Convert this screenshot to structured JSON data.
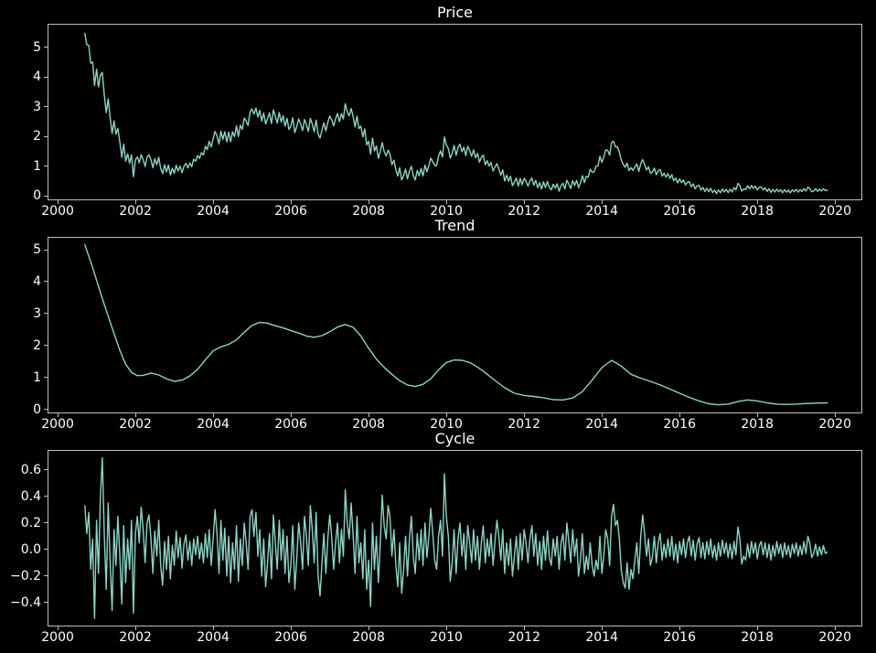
{
  "figure": {
    "background": "#000000",
    "line_color": "#8dd3c7",
    "spine_color": "#bfbfbf",
    "tick_color": "#bfbfbf",
    "text_color": "#ffffff"
  },
  "chart_data": [
    {
      "type": "line",
      "title": "Price",
      "grid": false,
      "legend": "none",
      "xlim": [
        1999.74,
        2020.7
      ],
      "ylim": [
        -0.15,
        5.8
      ],
      "xticks": {
        "values": [
          2000,
          2002,
          2004,
          2006,
          2008,
          2010,
          2012,
          2014,
          2016,
          2018,
          2020
        ],
        "labels": [
          "2000",
          "2002",
          "2004",
          "2006",
          "2008",
          "2010",
          "2012",
          "2014",
          "2016",
          "2018",
          "2020"
        ]
      },
      "yticks": {
        "values": [
          0,
          1,
          2,
          3,
          4,
          5
        ],
        "labels": [
          "0",
          "1",
          "2",
          "3",
          "4",
          "5"
        ]
      },
      "series": {
        "rule": "trend_plus_cycle"
      }
    },
    {
      "type": "line",
      "title": "Trend",
      "grid": false,
      "legend": "none",
      "xlim": [
        1999.74,
        2020.7
      ],
      "ylim": [
        -0.12,
        5.4
      ],
      "xticks": {
        "values": [
          2000,
          2002,
          2004,
          2006,
          2008,
          2010,
          2012,
          2014,
          2016,
          2018,
          2020
        ],
        "labels": [
          "2000",
          "2002",
          "2004",
          "2006",
          "2008",
          "2010",
          "2012",
          "2014",
          "2016",
          "2018",
          "2020"
        ]
      },
      "yticks": {
        "values": [
          0,
          1,
          2,
          3,
          4,
          5
        ],
        "labels": [
          "0",
          "1",
          "2",
          "3",
          "4",
          "5"
        ]
      },
      "series": {
        "x": [
          2000.7,
          2000.85,
          2001,
          2001.15,
          2001.3,
          2001.45,
          2001.6,
          2001.75,
          2001.9,
          2002.05,
          2002.2,
          2002.4,
          2002.6,
          2002.8,
          2003,
          2003.2,
          2003.4,
          2003.6,
          2003.8,
          2004,
          2004.2,
          2004.4,
          2004.6,
          2004.8,
          2005,
          2005.2,
          2005.4,
          2005.6,
          2005.8,
          2006,
          2006.2,
          2006.4,
          2006.6,
          2006.8,
          2007,
          2007.2,
          2007.4,
          2007.6,
          2007.8,
          2008,
          2008.2,
          2008.4,
          2008.6,
          2008.8,
          2009,
          2009.2,
          2009.4,
          2009.6,
          2009.8,
          2010,
          2010.2,
          2010.4,
          2010.6,
          2010.8,
          2011,
          2011.25,
          2011.5,
          2011.75,
          2012,
          2012.25,
          2012.5,
          2012.75,
          2013,
          2013.25,
          2013.5,
          2013.75,
          2014,
          2014.25,
          2014.5,
          2014.75,
          2015,
          2015.25,
          2015.5,
          2015.75,
          2016,
          2016.25,
          2016.5,
          2016.75,
          2017,
          2017.25,
          2017.5,
          2017.75,
          2018,
          2018.25,
          2018.5,
          2018.75,
          2019,
          2019.25,
          2019.5,
          2019.8
        ],
        "y": [
          5.15,
          4.62,
          4.05,
          3.47,
          2.92,
          2.38,
          1.85,
          1.42,
          1.16,
          1.06,
          1.07,
          1.14,
          1.08,
          0.96,
          0.88,
          0.92,
          1.05,
          1.26,
          1.55,
          1.84,
          1.96,
          2.04,
          2.18,
          2.42,
          2.63,
          2.73,
          2.7,
          2.62,
          2.55,
          2.47,
          2.39,
          2.3,
          2.26,
          2.31,
          2.43,
          2.58,
          2.66,
          2.57,
          2.3,
          1.92,
          1.58,
          1.32,
          1.1,
          0.9,
          0.77,
          0.72,
          0.79,
          0.96,
          1.24,
          1.47,
          1.55,
          1.54,
          1.47,
          1.33,
          1.15,
          0.91,
          0.68,
          0.51,
          0.44,
          0.41,
          0.37,
          0.31,
          0.3,
          0.36,
          0.56,
          0.92,
          1.31,
          1.54,
          1.36,
          1.1,
          0.98,
          0.88,
          0.77,
          0.64,
          0.51,
          0.38,
          0.27,
          0.18,
          0.15,
          0.17,
          0.25,
          0.3,
          0.27,
          0.21,
          0.17,
          0.16,
          0.17,
          0.19,
          0.2,
          0.21
        ]
      }
    },
    {
      "type": "line",
      "title": "Cycle",
      "grid": false,
      "legend": "none",
      "xlim": [
        1999.74,
        2020.7
      ],
      "ylim": [
        -0.58,
        0.75
      ],
      "xticks": {
        "values": [
          2000,
          2002,
          2004,
          2006,
          2008,
          2010,
          2012,
          2014,
          2016,
          2018,
          2020
        ],
        "labels": [
          "2000",
          "2002",
          "2004",
          "2006",
          "2008",
          "2010",
          "2012",
          "2014",
          "2016",
          "2018",
          "2020"
        ]
      },
      "yticks": {
        "values": [
          -0.4,
          -0.2,
          0.0,
          0.2,
          0.4,
          0.6
        ],
        "labels": [
          "−0.4",
          "−0.2",
          "0.0",
          "0.2",
          "0.4",
          "0.6"
        ]
      },
      "series": {
        "x_start": 2000.7,
        "x_step": 0.05,
        "y_scale": 0.01,
        "y": [
          33,
          12,
          28,
          -15,
          8,
          -52,
          22,
          -18,
          40,
          69,
          10,
          -30,
          35,
          -8,
          -46,
          15,
          -12,
          25,
          -5,
          -41,
          18,
          -25,
          8,
          -15,
          22,
          -48,
          12,
          25,
          5,
          32,
          15,
          -10,
          20,
          26,
          8,
          -18,
          14,
          -5,
          22,
          -12,
          -27,
          6,
          -15,
          10,
          -22,
          3,
          -12,
          14,
          -6,
          9,
          -14,
          4,
          11,
          -8,
          6,
          -12,
          8,
          -4,
          10,
          -7,
          5,
          -10,
          12,
          -6,
          15,
          -12,
          8,
          30,
          12,
          -18,
          22,
          -8,
          16,
          -20,
          10,
          -25,
          5,
          -15,
          18,
          -24,
          8,
          -12,
          20,
          5,
          -15,
          25,
          30,
          10,
          28,
          -5,
          15,
          -20,
          8,
          -28,
          -10,
          12,
          -22,
          26,
          5,
          -15,
          22,
          -8,
          15,
          -18,
          10,
          -25,
          -12,
          18,
          -30,
          -8,
          20,
          6,
          -15,
          25,
          10,
          -12,
          33,
          15,
          -10,
          28,
          -20,
          -35,
          -10,
          12,
          -18,
          8,
          26,
          10,
          -15,
          5,
          20,
          -10,
          15,
          -5,
          45,
          20,
          8,
          35,
          12,
          -18,
          25,
          -10,
          5,
          -22,
          15,
          -30,
          -8,
          -43,
          20,
          -15,
          10,
          -25,
          5,
          41,
          18,
          8,
          33,
          25,
          -5,
          15,
          -12,
          -28,
          5,
          -33,
          -15,
          10,
          -20,
          8,
          25,
          -5,
          -18,
          12,
          -8,
          15,
          -12,
          20,
          -6,
          10,
          31,
          12,
          -8,
          -15,
          10,
          22,
          -5,
          57,
          25,
          10,
          -24,
          -10,
          15,
          -18,
          8,
          20,
          -5,
          12,
          -15,
          18,
          5,
          -10,
          15,
          -8,
          10,
          -15,
          5,
          18,
          -10,
          8,
          -5,
          12,
          -12,
          6,
          22,
          10,
          -8,
          15,
          -18,
          5,
          -12,
          8,
          -20,
          -5,
          10,
          -15,
          12,
          -8,
          15,
          5,
          -10,
          8,
          18,
          -5,
          12,
          -12,
          6,
          -15,
          10,
          -8,
          14,
          -6,
          -12,
          8,
          -5,
          10,
          -15,
          5,
          12,
          -8,
          20,
          6,
          -10,
          15,
          -5,
          8,
          -20,
          -8,
          12,
          -18,
          -5,
          -15,
          5,
          -12,
          -20,
          -8,
          -15,
          10,
          -18,
          -5,
          15,
          8,
          -12,
          25,
          34,
          18,
          22,
          8,
          -15,
          -25,
          -29,
          -10,
          -30,
          -15,
          -22,
          -8,
          5,
          -18,
          10,
          26,
          12,
          -5,
          8,
          -12,
          -6,
          10,
          -10,
          5,
          12,
          -8,
          4,
          -6,
          8,
          -5,
          10,
          -8,
          4,
          -10,
          6,
          -4,
          8,
          -6,
          5,
          10,
          -5,
          7,
          -8,
          4,
          9,
          -6,
          5,
          -7,
          6,
          -4,
          8,
          -6,
          3,
          -8,
          5,
          -5,
          7,
          -3,
          5,
          -6,
          4,
          -7,
          6,
          -4,
          17,
          8,
          -11,
          -5,
          -8,
          4,
          -6,
          6,
          -3,
          5,
          -7,
          3,
          6,
          -4,
          5,
          -6,
          4,
          -8,
          3,
          -5,
          6,
          -3,
          4,
          -6,
          5,
          -4,
          3,
          -6,
          4,
          -3,
          5,
          -5,
          3,
          -4,
          6,
          -3,
          10,
          5,
          -6,
          -3,
          4,
          -5,
          2,
          -4,
          3,
          -3,
          -2
        ]
      }
    }
  ]
}
